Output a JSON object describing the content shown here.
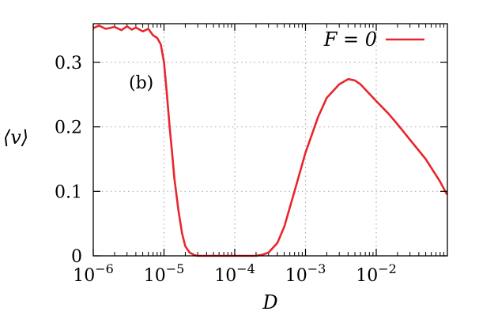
{
  "chart_data": {
    "type": "line",
    "panel_label": "(b)",
    "xlabel": "D",
    "ylabel": "⟨v⟩",
    "x_scale": "log",
    "xlim": [
      1e-06,
      0.1
    ],
    "ylim": [
      0,
      0.36
    ],
    "grid": true,
    "legend_position": "top-right",
    "x_ticks": [
      {
        "value": 1e-06,
        "base": "10",
        "exp": "−6"
      },
      {
        "value": 1e-05,
        "base": "10",
        "exp": "−5"
      },
      {
        "value": 0.0001,
        "base": "10",
        "exp": "−4"
      },
      {
        "value": 0.001,
        "base": "10",
        "exp": "−3"
      },
      {
        "value": 0.01,
        "base": "10",
        "exp": "−2"
      }
    ],
    "y_ticks": [
      {
        "value": 0,
        "label": "0"
      },
      {
        "value": 0.1,
        "label": "0.1"
      },
      {
        "value": 0.2,
        "label": "0.2"
      },
      {
        "value": 0.3,
        "label": "0.3"
      }
    ],
    "series": [
      {
        "name": "F = 0",
        "color": "#e8262d",
        "x": [
          1e-06,
          1.2e-06,
          1.5e-06,
          2e-06,
          2.5e-06,
          3e-06,
          3.5e-06,
          4e-06,
          5e-06,
          6e-06,
          7e-06,
          8e-06,
          9e-06,
          1e-05,
          1.1e-05,
          1.2e-05,
          1.3e-05,
          1.4e-05,
          1.6e-05,
          1.8e-05,
          2e-05,
          2.3e-05,
          2.7e-05,
          3e-05,
          4e-05,
          5e-05,
          7e-05,
          0.0001,
          0.00015,
          0.0002,
          0.00025,
          0.0003,
          0.0004,
          0.0005,
          0.0007,
          0.001,
          0.0015,
          0.002,
          0.003,
          0.004,
          0.005,
          0.006,
          0.007,
          0.01,
          0.015,
          0.02,
          0.03,
          0.05,
          0.08,
          0.1
        ],
        "y": [
          0.353,
          0.357,
          0.352,
          0.355,
          0.35,
          0.356,
          0.351,
          0.354,
          0.348,
          0.352,
          0.342,
          0.338,
          0.328,
          0.3,
          0.25,
          0.2,
          0.16,
          0.12,
          0.07,
          0.035,
          0.015,
          0.005,
          0.001,
          0,
          0,
          0,
          0,
          0,
          0,
          0,
          0.002,
          0.005,
          0.02,
          0.045,
          0.1,
          0.16,
          0.215,
          0.245,
          0.266,
          0.274,
          0.272,
          0.266,
          0.258,
          0.24,
          0.22,
          0.204,
          0.18,
          0.15,
          0.115,
          0.095
        ]
      }
    ]
  }
}
